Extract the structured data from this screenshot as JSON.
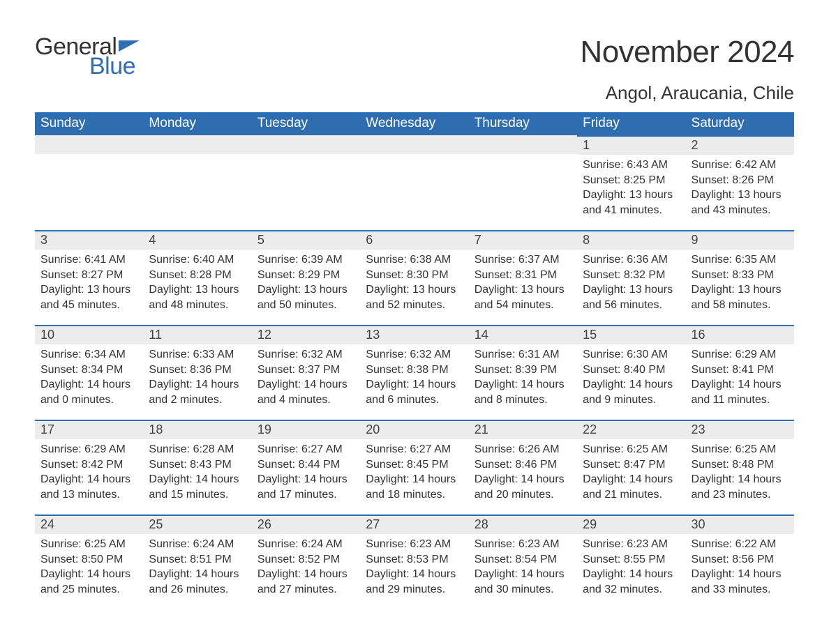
{
  "logo": {
    "word1": "General",
    "word2": "Blue"
  },
  "title": "November 2024",
  "location": "Angol, Araucania, Chile",
  "colors": {
    "header_bg": "#2f6db1",
    "header_text": "#ffffff",
    "daynum_bg": "#ececec",
    "daynum_border": "#2f6db1",
    "text": "#333333",
    "page_bg": "#ffffff"
  },
  "fonts": {
    "title_pt": 44,
    "location_pt": 26,
    "weekday_pt": 19,
    "daynum_pt": 18,
    "body_pt": 16
  },
  "weekdays": [
    "Sunday",
    "Monday",
    "Tuesday",
    "Wednesday",
    "Thursday",
    "Friday",
    "Saturday"
  ],
  "weeks": [
    [
      null,
      null,
      null,
      null,
      null,
      {
        "day": "1",
        "sunrise": "Sunrise: 6:43 AM",
        "sunset": "Sunset: 8:25 PM",
        "daylight": "Daylight: 13 hours and 41 minutes."
      },
      {
        "day": "2",
        "sunrise": "Sunrise: 6:42 AM",
        "sunset": "Sunset: 8:26 PM",
        "daylight": "Daylight: 13 hours and 43 minutes."
      }
    ],
    [
      {
        "day": "3",
        "sunrise": "Sunrise: 6:41 AM",
        "sunset": "Sunset: 8:27 PM",
        "daylight": "Daylight: 13 hours and 45 minutes."
      },
      {
        "day": "4",
        "sunrise": "Sunrise: 6:40 AM",
        "sunset": "Sunset: 8:28 PM",
        "daylight": "Daylight: 13 hours and 48 minutes."
      },
      {
        "day": "5",
        "sunrise": "Sunrise: 6:39 AM",
        "sunset": "Sunset: 8:29 PM",
        "daylight": "Daylight: 13 hours and 50 minutes."
      },
      {
        "day": "6",
        "sunrise": "Sunrise: 6:38 AM",
        "sunset": "Sunset: 8:30 PM",
        "daylight": "Daylight: 13 hours and 52 minutes."
      },
      {
        "day": "7",
        "sunrise": "Sunrise: 6:37 AM",
        "sunset": "Sunset: 8:31 PM",
        "daylight": "Daylight: 13 hours and 54 minutes."
      },
      {
        "day": "8",
        "sunrise": "Sunrise: 6:36 AM",
        "sunset": "Sunset: 8:32 PM",
        "daylight": "Daylight: 13 hours and 56 minutes."
      },
      {
        "day": "9",
        "sunrise": "Sunrise: 6:35 AM",
        "sunset": "Sunset: 8:33 PM",
        "daylight": "Daylight: 13 hours and 58 minutes."
      }
    ],
    [
      {
        "day": "10",
        "sunrise": "Sunrise: 6:34 AM",
        "sunset": "Sunset: 8:34 PM",
        "daylight": "Daylight: 14 hours and 0 minutes."
      },
      {
        "day": "11",
        "sunrise": "Sunrise: 6:33 AM",
        "sunset": "Sunset: 8:36 PM",
        "daylight": "Daylight: 14 hours and 2 minutes."
      },
      {
        "day": "12",
        "sunrise": "Sunrise: 6:32 AM",
        "sunset": "Sunset: 8:37 PM",
        "daylight": "Daylight: 14 hours and 4 minutes."
      },
      {
        "day": "13",
        "sunrise": "Sunrise: 6:32 AM",
        "sunset": "Sunset: 8:38 PM",
        "daylight": "Daylight: 14 hours and 6 minutes."
      },
      {
        "day": "14",
        "sunrise": "Sunrise: 6:31 AM",
        "sunset": "Sunset: 8:39 PM",
        "daylight": "Daylight: 14 hours and 8 minutes."
      },
      {
        "day": "15",
        "sunrise": "Sunrise: 6:30 AM",
        "sunset": "Sunset: 8:40 PM",
        "daylight": "Daylight: 14 hours and 9 minutes."
      },
      {
        "day": "16",
        "sunrise": "Sunrise: 6:29 AM",
        "sunset": "Sunset: 8:41 PM",
        "daylight": "Daylight: 14 hours and 11 minutes."
      }
    ],
    [
      {
        "day": "17",
        "sunrise": "Sunrise: 6:29 AM",
        "sunset": "Sunset: 8:42 PM",
        "daylight": "Daylight: 14 hours and 13 minutes."
      },
      {
        "day": "18",
        "sunrise": "Sunrise: 6:28 AM",
        "sunset": "Sunset: 8:43 PM",
        "daylight": "Daylight: 14 hours and 15 minutes."
      },
      {
        "day": "19",
        "sunrise": "Sunrise: 6:27 AM",
        "sunset": "Sunset: 8:44 PM",
        "daylight": "Daylight: 14 hours and 17 minutes."
      },
      {
        "day": "20",
        "sunrise": "Sunrise: 6:27 AM",
        "sunset": "Sunset: 8:45 PM",
        "daylight": "Daylight: 14 hours and 18 minutes."
      },
      {
        "day": "21",
        "sunrise": "Sunrise: 6:26 AM",
        "sunset": "Sunset: 8:46 PM",
        "daylight": "Daylight: 14 hours and 20 minutes."
      },
      {
        "day": "22",
        "sunrise": "Sunrise: 6:25 AM",
        "sunset": "Sunset: 8:47 PM",
        "daylight": "Daylight: 14 hours and 21 minutes."
      },
      {
        "day": "23",
        "sunrise": "Sunrise: 6:25 AM",
        "sunset": "Sunset: 8:48 PM",
        "daylight": "Daylight: 14 hours and 23 minutes."
      }
    ],
    [
      {
        "day": "24",
        "sunrise": "Sunrise: 6:25 AM",
        "sunset": "Sunset: 8:50 PM",
        "daylight": "Daylight: 14 hours and 25 minutes."
      },
      {
        "day": "25",
        "sunrise": "Sunrise: 6:24 AM",
        "sunset": "Sunset: 8:51 PM",
        "daylight": "Daylight: 14 hours and 26 minutes."
      },
      {
        "day": "26",
        "sunrise": "Sunrise: 6:24 AM",
        "sunset": "Sunset: 8:52 PM",
        "daylight": "Daylight: 14 hours and 27 minutes."
      },
      {
        "day": "27",
        "sunrise": "Sunrise: 6:23 AM",
        "sunset": "Sunset: 8:53 PM",
        "daylight": "Daylight: 14 hours and 29 minutes."
      },
      {
        "day": "28",
        "sunrise": "Sunrise: 6:23 AM",
        "sunset": "Sunset: 8:54 PM",
        "daylight": "Daylight: 14 hours and 30 minutes."
      },
      {
        "day": "29",
        "sunrise": "Sunrise: 6:23 AM",
        "sunset": "Sunset: 8:55 PM",
        "daylight": "Daylight: 14 hours and 32 minutes."
      },
      {
        "day": "30",
        "sunrise": "Sunrise: 6:22 AM",
        "sunset": "Sunset: 8:56 PM",
        "daylight": "Daylight: 14 hours and 33 minutes."
      }
    ]
  ]
}
